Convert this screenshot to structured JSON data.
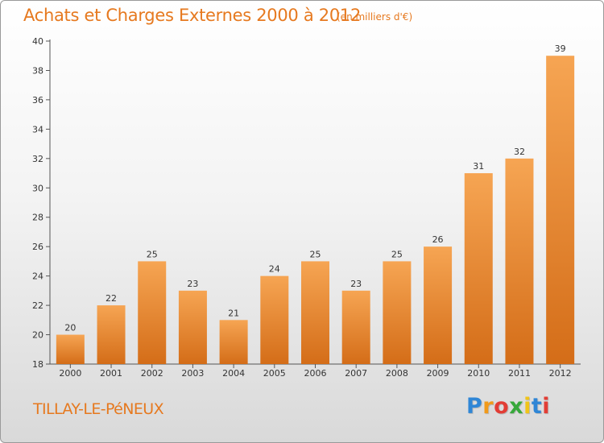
{
  "title": "Achats et Charges Externes 2000 à 2012",
  "subtitle": "(en milliers d'€)",
  "commune": "TILLAY-LE-PéNEUX",
  "logo": {
    "letters": [
      "P",
      "r",
      "o",
      "x",
      "i",
      "t",
      "i"
    ],
    "colors": [
      "#2f86d6",
      "#f19a1b",
      "#e23d35",
      "#37a83b",
      "#f0c419",
      "#2f86d6",
      "#e23d35"
    ]
  },
  "colors": {
    "accent": "#e6791f",
    "bar_top": "#f6a553",
    "bar_bottom": "#d46d18"
  },
  "chart_data": {
    "type": "bar",
    "title": "Achats et Charges Externes 2000 à 2012",
    "subtitle": "(en milliers d'€)",
    "xlabel": "",
    "ylabel": "",
    "categories": [
      "2000",
      "2001",
      "2002",
      "2003",
      "2004",
      "2005",
      "2006",
      "2007",
      "2008",
      "2009",
      "2010",
      "2011",
      "2012"
    ],
    "values": [
      20,
      22,
      25,
      23,
      21,
      24,
      25,
      23,
      25,
      26,
      31,
      32,
      39
    ],
    "ylim": [
      18,
      40
    ],
    "yticks": [
      18,
      20,
      22,
      24,
      26,
      28,
      30,
      32,
      34,
      36,
      38,
      40
    ],
    "grid": false,
    "data_labels": true
  }
}
